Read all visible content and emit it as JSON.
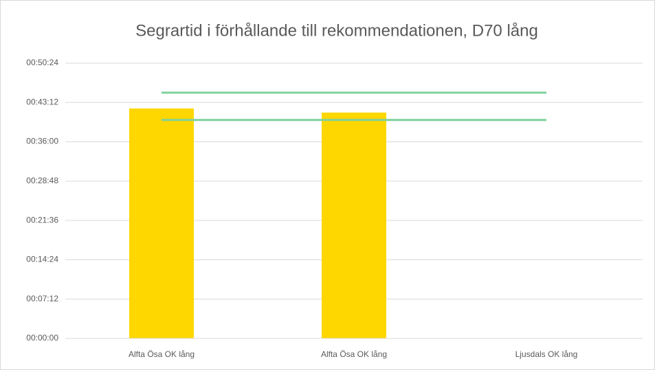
{
  "chart_data": {
    "type": "bar",
    "title": "Segrartid i förhållande till rekommendationen, D70 lång",
    "categories": [
      "Alfta Ösa OK lång",
      "Alfta Ösa OK lång",
      "Ljusdals OK lång"
    ],
    "series": [
      {
        "type": "bar",
        "color": "#ffd700",
        "values": [
          42.1,
          41.35,
          null
        ]
      },
      {
        "type": "line",
        "color": "#7fd19c",
        "values": [
          45,
          45,
          45
        ]
      },
      {
        "type": "line",
        "color": "#7fd19c",
        "values": [
          40,
          40,
          40
        ]
      }
    ],
    "ylim": [
      0,
      50.4
    ],
    "yticks": [
      {
        "value": 0,
        "label": "00:00:00"
      },
      {
        "value": 7.2,
        "label": "00:07:12"
      },
      {
        "value": 14.4,
        "label": "00:14:24"
      },
      {
        "value": 21.6,
        "label": "00:21:36"
      },
      {
        "value": 28.8,
        "label": "00:28:48"
      },
      {
        "value": 36,
        "label": "00:36:00"
      },
      {
        "value": 43.2,
        "label": "00:43:12"
      },
      {
        "value": 50.4,
        "label": "00:50:24"
      }
    ],
    "grid": true
  }
}
